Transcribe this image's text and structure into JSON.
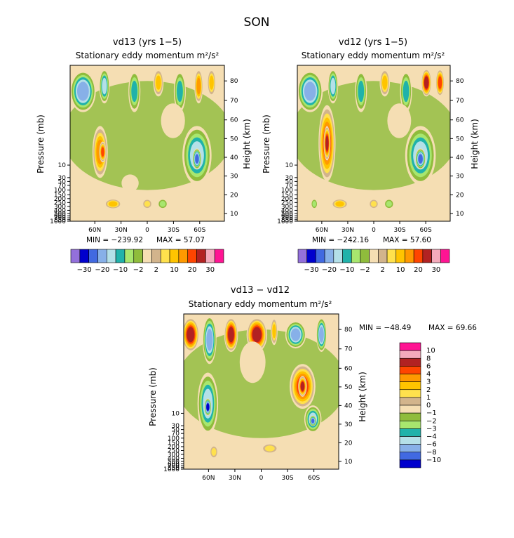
{
  "figure": {
    "title": "SON"
  },
  "colors": {
    "fill": [
      "#9370db",
      "#0000cd",
      "#4169e1",
      "#87b0e8",
      "#b4e0e8",
      "#20b2aa",
      "#a8e66e",
      "#8fbc3c",
      "#f5deb3",
      "#d2b48c",
      "#ffe14d",
      "#ffc400",
      "#ff9900",
      "#ff4500",
      "#b22222",
      "#f4aabb",
      "#ff1493"
    ]
  },
  "chart_data": [
    {
      "type": "heatmap",
      "title": "vd13 (yrs 1−5)",
      "subtitle": "Stationary eddy momentum m²/s²",
      "ylabel": "Pressure (mb)",
      "y2label": "Height (km)",
      "x_ticks": [
        "60N",
        "30N",
        "0",
        "30S",
        "60S"
      ],
      "y_ticks": [
        "10",
        "30",
        "50",
        "70",
        "100",
        "150",
        "200",
        "250",
        "300",
        "400",
        "500",
        "600",
        "700",
        "850",
        "1000"
      ],
      "y2_ticks": [
        "80",
        "70",
        "60",
        "50",
        "40",
        "30",
        "20",
        "10"
      ],
      "min_label": "MIN = −239.92",
      "max_label": "MAX = 57.07",
      "colorbar": {
        "orientation": "horizontal",
        "labels": [
          "−30",
          "−20",
          "−10",
          "−2",
          "2",
          "10",
          "20",
          "30"
        ]
      },
      "features": [
        {
          "cx": -75,
          "cy": 75,
          "rx": 15,
          "ry": 12,
          "level": -5
        },
        {
          "cx": -50,
          "cy": 78,
          "rx": 6,
          "ry": 10,
          "level": -4
        },
        {
          "cx": -15,
          "cy": 75,
          "rx": 7,
          "ry": 12,
          "level": -3
        },
        {
          "cx": 13,
          "cy": 80,
          "rx": 6,
          "ry": 8,
          "level": 3
        },
        {
          "cx": 38,
          "cy": 75,
          "rx": 7,
          "ry": 12,
          "level": -3
        },
        {
          "cx": 60,
          "cy": 78,
          "rx": 5,
          "ry": 10,
          "level": 4
        },
        {
          "cx": 75,
          "cy": 80,
          "rx": 5,
          "ry": 8,
          "level": 3
        },
        {
          "cx": -55,
          "cy": 40,
          "rx": 9,
          "ry": 15,
          "level": 4
        },
        {
          "cx": -52,
          "cy": 40,
          "rx": 4,
          "ry": 6,
          "level": 5
        },
        {
          "cx": 58,
          "cy": 38,
          "rx": 17,
          "ry": 17,
          "level": -4
        },
        {
          "cx": 58,
          "cy": 36,
          "rx": 5,
          "ry": 6,
          "level": -6
        },
        {
          "cx": -40,
          "cy": 10,
          "rx": 10,
          "ry": 3,
          "level": 3
        },
        {
          "cx": 0,
          "cy": 10,
          "rx": 6,
          "ry": 3,
          "level": 2
        },
        {
          "cx": 18,
          "cy": 10,
          "rx": 6,
          "ry": 3,
          "level": -2
        },
        {
          "cx": 30,
          "cy": 58,
          "rx": 14,
          "ry": 10,
          "level": 0
        },
        {
          "cx": -20,
          "cy": 22,
          "rx": 10,
          "ry": 5,
          "level": 0
        }
      ]
    },
    {
      "type": "heatmap",
      "title": "vd12 (yrs 1−5)",
      "subtitle": "Stationary eddy momentum m²/s²",
      "ylabel": "Pressure (mb)",
      "y2label": "Height (km)",
      "x_ticks": [
        "60N",
        "30N",
        "0",
        "30S",
        "60S"
      ],
      "y_ticks": [
        "10",
        "30",
        "50",
        "70",
        "100",
        "150",
        "200",
        "250",
        "300",
        "400",
        "500",
        "600",
        "700",
        "850",
        "1000"
      ],
      "y2_ticks": [
        "80",
        "70",
        "60",
        "50",
        "40",
        "30",
        "20",
        "10"
      ],
      "min_label": "MIN = −242.16",
      "max_label": "MAX = 57.60",
      "colorbar": {
        "orientation": "horizontal",
        "labels": [
          "−30",
          "−20",
          "−10",
          "−2",
          "2",
          "10",
          "20",
          "30"
        ]
      },
      "features": [
        {
          "cx": -75,
          "cy": 75,
          "rx": 15,
          "ry": 12,
          "level": -5
        },
        {
          "cx": -48,
          "cy": 78,
          "rx": 6,
          "ry": 10,
          "level": -4
        },
        {
          "cx": -15,
          "cy": 75,
          "rx": 7,
          "ry": 12,
          "level": -3
        },
        {
          "cx": 13,
          "cy": 80,
          "rx": 6,
          "ry": 8,
          "level": 3
        },
        {
          "cx": 38,
          "cy": 75,
          "rx": 7,
          "ry": 12,
          "level": -3
        },
        {
          "cx": 62,
          "cy": 80,
          "rx": 6,
          "ry": 8,
          "level": 6
        },
        {
          "cx": 78,
          "cy": 80,
          "rx": 5,
          "ry": 8,
          "level": 5
        },
        {
          "cx": -55,
          "cy": 45,
          "rx": 10,
          "ry": 22,
          "level": 5
        },
        {
          "cx": -55,
          "cy": 45,
          "rx": 4,
          "ry": 10,
          "level": 6
        },
        {
          "cx": 55,
          "cy": 38,
          "rx": 18,
          "ry": 17,
          "level": -4
        },
        {
          "cx": 55,
          "cy": 36,
          "rx": 6,
          "ry": 6,
          "level": -6
        },
        {
          "cx": -40,
          "cy": 10,
          "rx": 10,
          "ry": 3,
          "level": 3
        },
        {
          "cx": -70,
          "cy": 10,
          "rx": 4,
          "ry": 3,
          "level": -2
        },
        {
          "cx": 0,
          "cy": 10,
          "rx": 6,
          "ry": 3,
          "level": 2
        },
        {
          "cx": 18,
          "cy": 10,
          "rx": 6,
          "ry": 3,
          "level": -2
        },
        {
          "cx": 30,
          "cy": 58,
          "rx": 14,
          "ry": 10,
          "level": 0
        }
      ]
    },
    {
      "type": "heatmap",
      "title": "vd13 − vd12",
      "subtitle": "Stationary eddy momentum m²/s²",
      "ylabel": "Pressure (mb)",
      "y2label": "Height (km)",
      "x_ticks": [
        "60N",
        "30N",
        "0",
        "30S",
        "60S"
      ],
      "y_ticks": [
        "10",
        "30",
        "50",
        "70",
        "100",
        "150",
        "200",
        "250",
        "300",
        "400",
        "500",
        "600",
        "700",
        "850",
        "1000"
      ],
      "y2_ticks": [
        "80",
        "70",
        "60",
        "50",
        "40",
        "30",
        "20",
        "10"
      ],
      "min_label": "MIN = −48.49",
      "max_label": "MAX = 69.66",
      "colorbar": {
        "orientation": "vertical",
        "labels": [
          "10",
          "8",
          "6",
          "4",
          "3",
          "2",
          "1",
          "0",
          "−1",
          "−2",
          "−3",
          "−4",
          "−6",
          "−8",
          "−10"
        ]
      },
      "features": [
        {
          "cx": -82,
          "cy": 78,
          "rx": 10,
          "ry": 10,
          "level": 6
        },
        {
          "cx": -60,
          "cy": 75,
          "rx": 8,
          "ry": 14,
          "level": -5
        },
        {
          "cx": -35,
          "cy": 78,
          "rx": 8,
          "ry": 10,
          "level": 6
        },
        {
          "cx": -5,
          "cy": 78,
          "rx": 12,
          "ry": 10,
          "level": 6
        },
        {
          "cx": 15,
          "cy": 80,
          "rx": 4,
          "ry": 8,
          "level": 3
        },
        {
          "cx": 40,
          "cy": 78,
          "rx": 12,
          "ry": 8,
          "level": -5
        },
        {
          "cx": 70,
          "cy": 78,
          "rx": 6,
          "ry": 10,
          "level": -5
        },
        {
          "cx": -62,
          "cy": 38,
          "rx": 12,
          "ry": 18,
          "level": -4
        },
        {
          "cx": -62,
          "cy": 36,
          "rx": 4,
          "ry": 5,
          "level": -7
        },
        {
          "cx": 48,
          "cy": 48,
          "rx": 15,
          "ry": 13,
          "level": 5
        },
        {
          "cx": 48,
          "cy": 48,
          "rx": 5,
          "ry": 6,
          "level": 6
        },
        {
          "cx": 60,
          "cy": 29,
          "rx": 10,
          "ry": 8,
          "level": -4
        },
        {
          "cx": 60,
          "cy": 28,
          "rx": 4,
          "ry": 3,
          "level": -6
        },
        {
          "cx": -55,
          "cy": 10,
          "rx": 5,
          "ry": 4,
          "level": 2
        },
        {
          "cx": 10,
          "cy": 12,
          "rx": 10,
          "ry": 3,
          "level": 2
        },
        {
          "cx": -10,
          "cy": 62,
          "rx": 15,
          "ry": 12,
          "level": 0
        }
      ]
    }
  ]
}
